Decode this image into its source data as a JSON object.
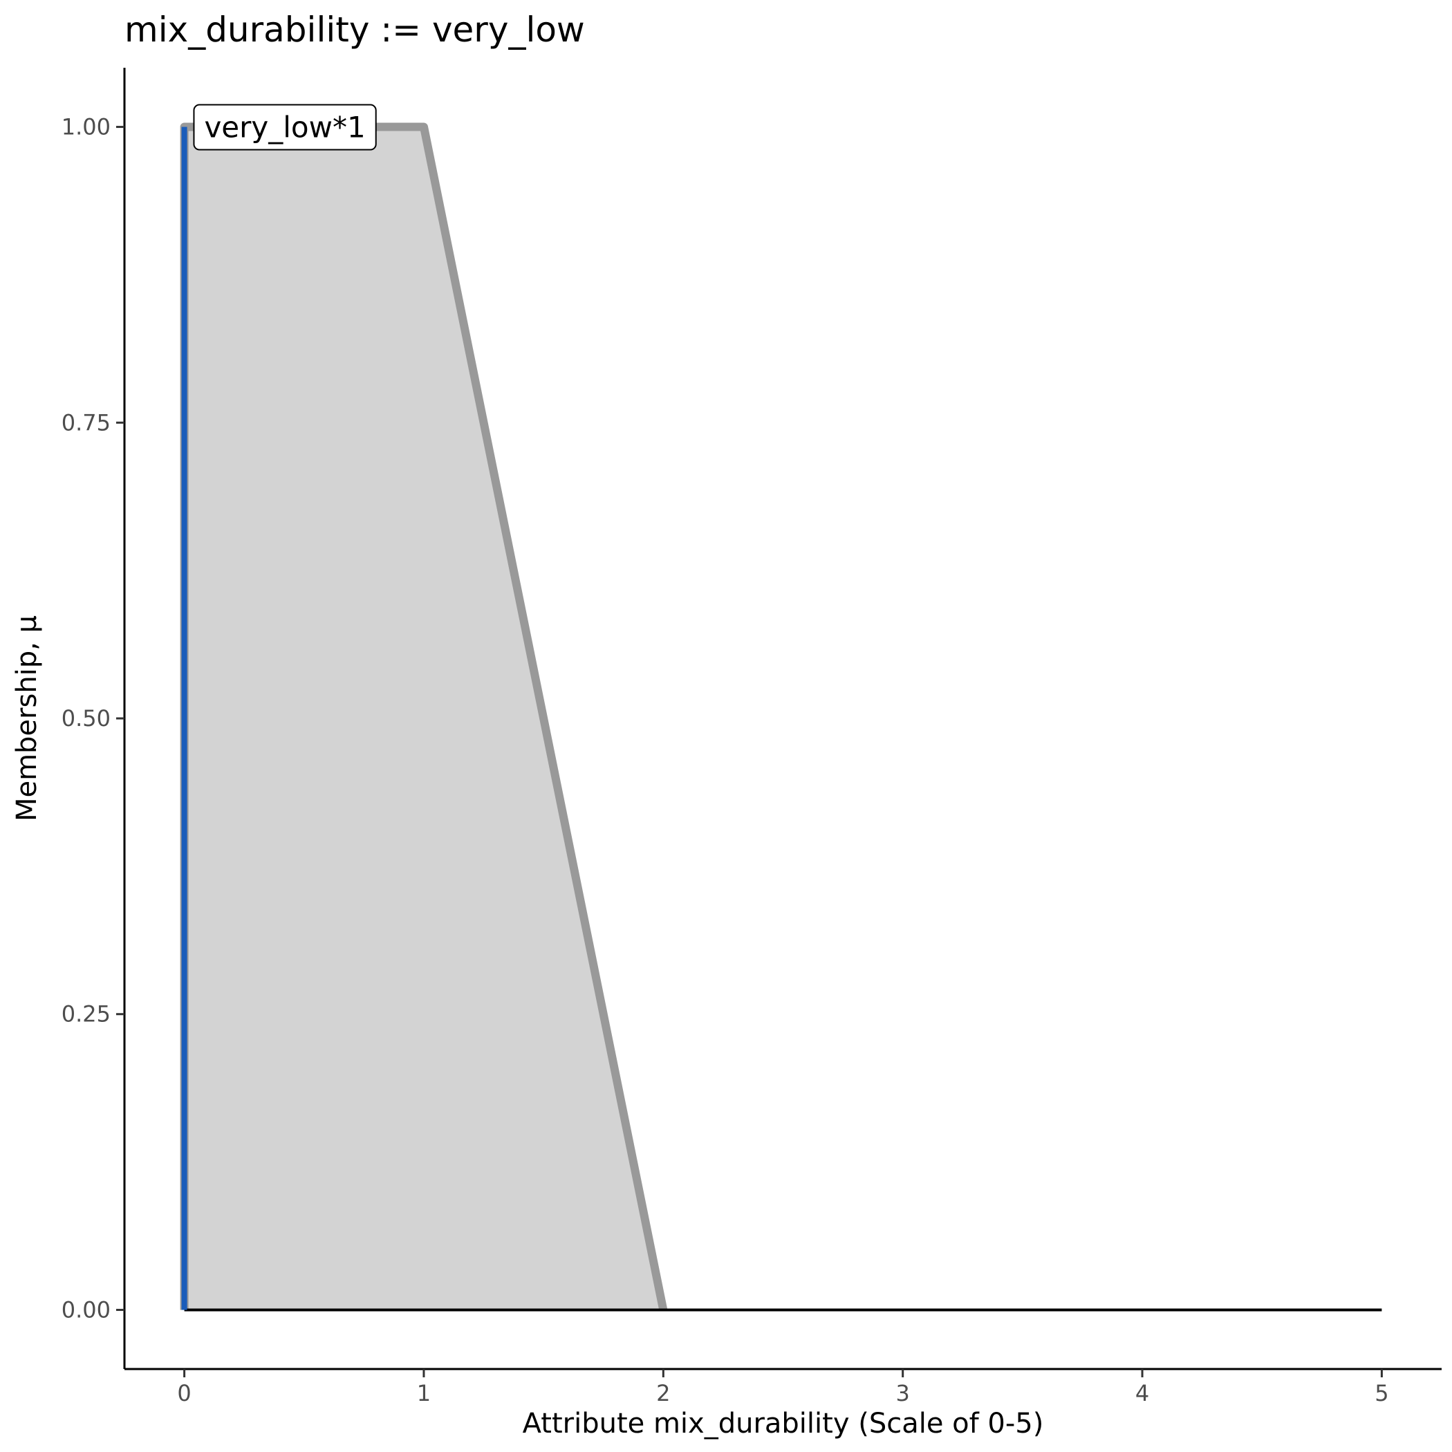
{
  "chart_data": {
    "type": "area",
    "title": "mix_durability := very_low",
    "xlabel": "Attribute mix_durability (Scale of 0-5)",
    "ylabel": "Membership, μ",
    "xlim": [
      -0.25,
      5.25
    ],
    "ylim": [
      -0.05,
      1.05
    ],
    "x_ticks": [
      0,
      1,
      2,
      3,
      4,
      5
    ],
    "y_ticks": [
      0.0,
      0.25,
      0.5,
      0.75,
      1.0
    ],
    "x_tick_labels": [
      "0",
      "1",
      "2",
      "3",
      "4",
      "5"
    ],
    "y_tick_labels": [
      "0.00",
      "0.25",
      "0.50",
      "0.75",
      "1.00"
    ],
    "grid": false,
    "membership_function": {
      "x": [
        0,
        0,
        1,
        2
      ],
      "y": [
        0,
        1,
        1,
        0
      ],
      "stroke_color": "#999999",
      "fill_color": "#d3d3d3"
    },
    "baseline": {
      "x": [
        0,
        5
      ],
      "y": [
        0,
        0
      ],
      "color": "#000000"
    },
    "input_marker": {
      "x": 0,
      "y": [
        0,
        1
      ],
      "color": "#1a5cba"
    },
    "annotation": {
      "text": "very_low*1",
      "x": 0.04,
      "y": 1.0
    }
  }
}
